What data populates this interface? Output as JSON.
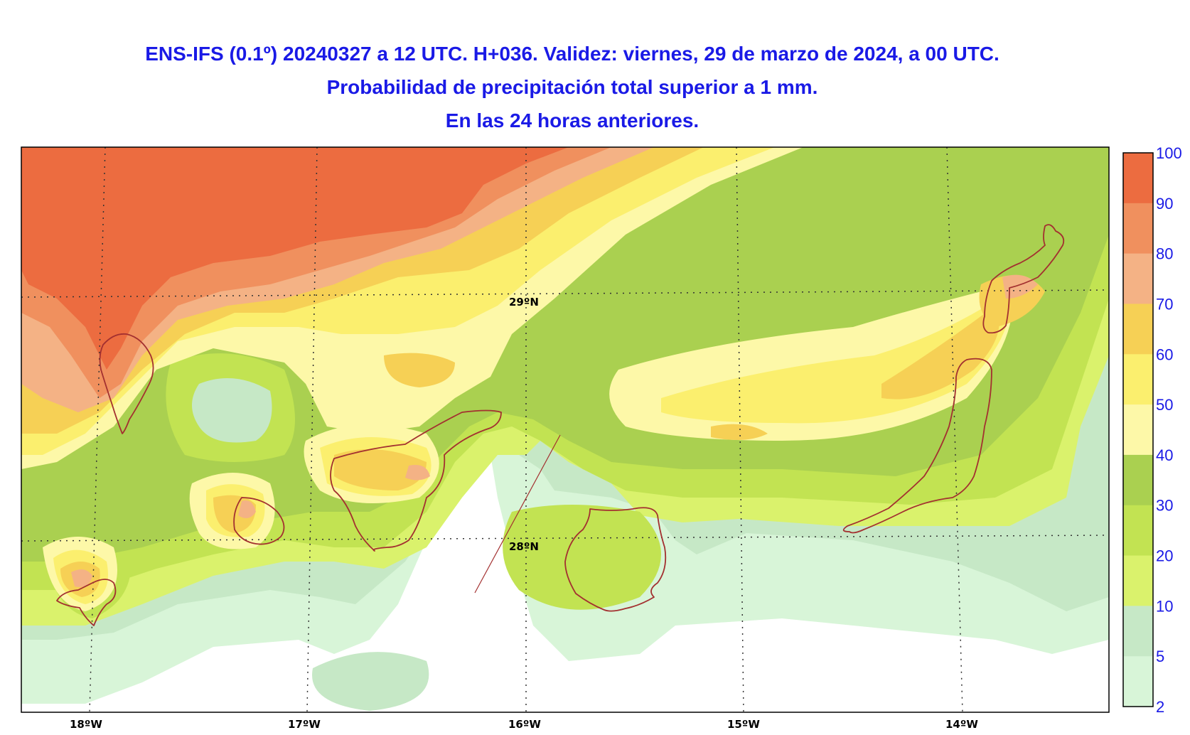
{
  "header": {
    "line1": "ENS-IFS (0.1º) 20240327 a 12 UTC. H+036. Validez: viernes, 29 de marzo de 2024, a 00 UTC.",
    "line2": "Probabilidad de precipitación total superior a 1 mm.",
    "line3": "En las 24 horas anteriores."
  },
  "map": {
    "lon_labels": [
      "18ºW",
      "17ºW",
      "16ºW",
      "15ºW",
      "14ºW"
    ],
    "lat_labels": [
      "29ºN",
      "28ºN"
    ]
  },
  "legend": {
    "levels": [
      "100",
      "90",
      "80",
      "70",
      "60",
      "50",
      "40",
      "30",
      "20",
      "10",
      "5",
      "2"
    ],
    "colors": [
      "#ec6c40",
      "#f0905e",
      "#f4b285",
      "#f6d055",
      "#fbef6e",
      "#fdf8a8",
      "#aad050",
      "#c2e352",
      "#daf26c",
      "#c6e8c6",
      "#d8f5d8",
      "#ffffff"
    ]
  },
  "colors": {
    "title": "#1a1ae6",
    "coastline": "#a33030"
  }
}
